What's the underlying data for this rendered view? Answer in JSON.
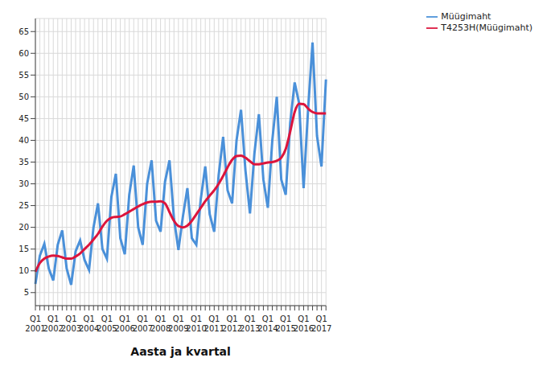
{
  "chart_data": {
    "type": "line",
    "x_label": "Aasta ja kvartal",
    "categories": [
      "Q1 2001",
      null,
      null,
      null,
      "Q1 2002",
      null,
      null,
      null,
      "Q1 2003",
      null,
      null,
      null,
      "Q1 2004",
      null,
      null,
      null,
      "Q1 2005",
      null,
      null,
      null,
      "Q1 2006",
      null,
      null,
      null,
      "Q1 2007",
      null,
      null,
      null,
      "Q1 2008",
      null,
      null,
      null,
      "Q1 2009",
      null,
      null,
      null,
      "Q1 2010",
      null,
      null,
      null,
      "Q1 2011",
      null,
      null,
      null,
      "Q1 2012",
      null,
      null,
      null,
      "Q1 2013",
      null,
      null,
      null,
      "Q1 2014",
      null,
      null,
      null,
      "Q1 2015",
      null,
      null,
      null,
      "Q1 2016",
      null,
      null,
      null,
      "Q1 2017",
      null
    ],
    "series": [
      {
        "name": "Müügimaht",
        "color": "#4a90d9",
        "values": [
          7,
          13.5,
          16.2,
          10.5,
          7.8,
          16,
          19.3,
          10.5,
          6.8,
          14.5,
          17,
          12.5,
          10.2,
          20,
          25.5,
          15,
          12.8,
          27,
          32.3,
          17.5,
          13.8,
          27.5,
          34.2,
          20,
          16,
          30,
          35.4,
          21.5,
          19,
          30.5,
          35.4,
          22,
          14.8,
          22.5,
          29,
          17.5,
          16,
          26.5,
          34,
          23,
          19,
          32,
          40.8,
          28.5,
          25.5,
          40,
          47,
          33,
          23.2,
          37,
          46,
          31,
          24.5,
          40,
          50,
          31,
          27.5,
          44,
          53.3,
          48.5,
          29,
          47,
          62.5,
          41,
          34,
          54
        ]
      },
      {
        "name": "T4253H(Müügimaht)",
        "color": "#dc143c",
        "values": [
          9.8,
          11.8,
          12.8,
          13.3,
          13.5,
          13.4,
          13.1,
          12.8,
          12.8,
          13.3,
          14,
          15,
          16,
          17.2,
          18.5,
          20.2,
          21.5,
          22.2,
          22.4,
          22.5,
          23,
          23.6,
          24.2,
          24.8,
          25.3,
          25.7,
          25.9,
          25.9,
          26,
          25.5,
          23.5,
          21.5,
          20.3,
          20,
          20.4,
          21.5,
          23,
          24.5,
          26,
          27.3,
          28.5,
          30,
          31.8,
          33.8,
          35.5,
          36.4,
          36.5,
          36,
          35.2,
          34.5,
          34.5,
          34.7,
          34.9,
          35,
          35.3,
          36,
          38,
          42,
          46.5,
          48.4,
          48.3,
          47.3,
          46.5,
          46.2,
          46.2,
          46.2
        ]
      }
    ],
    "ylim": [
      2,
      68
    ],
    "yticks": [
      5,
      10,
      15,
      20,
      25,
      30,
      35,
      40,
      45,
      50,
      55,
      60,
      65
    ],
    "grid": true,
    "legend": "upper right"
  }
}
